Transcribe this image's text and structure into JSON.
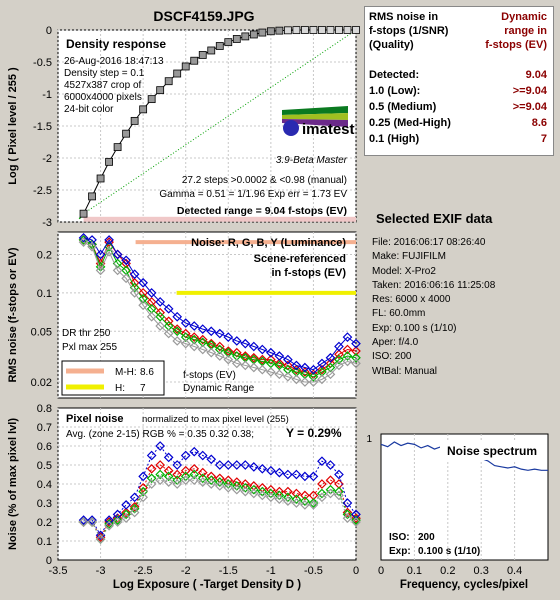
{
  "title": "DSCF4159.JPG",
  "colors": {
    "red": "#e00000",
    "green": "#00b000",
    "blue": "#0000d0",
    "gray": "#9a9a9a",
    "darkred": "#8b0000",
    "title": "#7a1090"
  },
  "density_panel": {
    "heading": "Density response",
    "info": [
      "26-Aug-2016 18:47:13",
      "Density step = 0.1",
      "4527x387 crop of",
      "6000x4000 pixels",
      "24-bit color"
    ],
    "ylabel": "Log ( Pixel level / 255 )",
    "yticks": [
      "0",
      "-0.5",
      "-1",
      "-1.5",
      "-2",
      "-2.5",
      "-3"
    ],
    "logo_text": "imatest",
    "version": "3.9-Beta  Master",
    "steps_text": "27.2 steps >0.0002 & <0.98 (manual)",
    "gamma_text": "Gamma = 0.51 = 1/1.96  Exp err = 1.73 EV",
    "range_text": "Detected range = 9.04 f-stops (EV)"
  },
  "noise_panel": {
    "heading": "Noise: R, G, B, Y (Luminance)",
    "scene_text_1": "Scene-referenced",
    "scene_text_2": "in f-stops (EV)",
    "dr_thr": "DR thr 250",
    "pxl_max": "Pxl max 255",
    "ylabel": "RMS noise (f-stops or EV)",
    "yticks": [
      "0.2",
      "0.1",
      "0.05",
      "0.02"
    ],
    "legend_mh_label": "M-H:",
    "legend_mh_value": "8.6",
    "legend_h_label": "H:",
    "legend_h_value": "7",
    "footer_1": "f-stops (EV)",
    "footer_2": "Dynamic Range"
  },
  "pixel_panel": {
    "heading": "Pixel noise",
    "subheading": "normalized to max pixel level (255)",
    "avg_text": "Avg. (zone 2-15) RGB % = 0.35  0.32  0.38;",
    "y_text": "Y = 0.29%",
    "ylabel": "Noise (% of max pixel lvl)",
    "yticks": [
      "0.8",
      "0.7",
      "0.6",
      "0.5",
      "0.4",
      "0.3",
      "0.2",
      "0.1",
      "0"
    ],
    "xticks": [
      "-3.5",
      "-3",
      "-2.5",
      "-2",
      "-1.5",
      "-1",
      "-0.5",
      "0"
    ],
    "xlabel": "Log Exposure ( -Target Density D )"
  },
  "results_table": {
    "header_left_1": "RMS noise in",
    "header_left_2": "f-stops (1/SNR)",
    "header_left_3": "(Quality)",
    "header_right_1": "Dynamic",
    "header_right_2": "range in",
    "header_right_3": "f-stops (EV)",
    "rows": [
      {
        "label": "Detected:",
        "value": "9.04"
      },
      {
        "label": "1.0  (Low):",
        "value": ">=9.04"
      },
      {
        "label": "0.5  (Medium)",
        "value": ">=9.04"
      },
      {
        "label": "0.25 (Med-High)",
        "value": "8.6"
      },
      {
        "label": "0.1  (High)",
        "value": "7"
      }
    ]
  },
  "exif": {
    "title": "Selected EXIF data",
    "lines": [
      "File:  2016:06:17 08:26:40",
      "Make:  FUJIFILM",
      "Model: X-Pro2",
      "Taken: 2016:06:16 11:25:08",
      "Res:   6000 x 4000",
      "FL:   60.0mm",
      "Exp:   0.100 s  (1/10)",
      "Aper:  f/4.0",
      "ISO:   200",
      "WtBal: Manual"
    ]
  },
  "spectrum": {
    "title": "Noise spectrum",
    "ytick": "1",
    "iso_label": "ISO:",
    "iso_value": "200",
    "exp_label": "Exp:",
    "exp_value": "0.100 s  (1/10)",
    "xlabel": "Frequency, cycles/pixel",
    "xticks": [
      "0",
      "0.1",
      "0.2",
      "0.3",
      "0.4"
    ]
  },
  "chart_data": [
    {
      "type": "scatter",
      "title": "Density response",
      "xlim": [
        -3.5,
        0
      ],
      "ylim": [
        -3,
        0
      ],
      "series": [
        {
          "name": "Density response",
          "x": [
            -3.2,
            -3.1,
            -3.0,
            -2.9,
            -2.8,
            -2.7,
            -2.6,
            -2.5,
            -2.4,
            -2.3,
            -2.2,
            -2.1,
            -2.0,
            -1.9,
            -1.8,
            -1.7,
            -1.6,
            -1.5,
            -1.4,
            -1.3,
            -1.2,
            -1.1,
            -1.0,
            -0.9,
            -0.8,
            -0.7,
            -0.6,
            -0.5,
            -0.4,
            -0.3,
            -0.2,
            -0.1,
            0.0
          ],
          "y": [
            -2.87,
            -2.6,
            -2.32,
            -2.06,
            -1.83,
            -1.62,
            -1.42,
            -1.24,
            -1.08,
            -0.94,
            -0.8,
            -0.68,
            -0.57,
            -0.48,
            -0.39,
            -0.32,
            -0.25,
            -0.19,
            -0.14,
            -0.1,
            -0.07,
            -0.04,
            -0.02,
            -0.01,
            -0.005,
            -0.002,
            0,
            0,
            0,
            0,
            0,
            0,
            0
          ]
        }
      ]
    },
    {
      "type": "line",
      "title": "Noise: R, G, B, Y (Luminance)",
      "ylabel": "RMS noise (f-stops or EV)",
      "xlim": [
        -3.5,
        0
      ],
      "ylim_log": [
        0.015,
        0.3
      ],
      "x": [
        -3.2,
        -3.1,
        -3.0,
        -2.9,
        -2.8,
        -2.7,
        -2.6,
        -2.5,
        -2.4,
        -2.3,
        -2.2,
        -2.1,
        -2.0,
        -1.9,
        -1.8,
        -1.7,
        -1.6,
        -1.5,
        -1.4,
        -1.3,
        -1.2,
        -1.1,
        -1.0,
        -0.9,
        -0.8,
        -0.7,
        -0.6,
        -0.5,
        -0.4,
        -0.3,
        -0.2,
        -0.1,
        0.0
      ],
      "series": [
        {
          "name": "R",
          "values": [
            0.26,
            0.24,
            0.17,
            0.25,
            0.2,
            0.17,
            0.12,
            0.1,
            0.085,
            0.07,
            0.06,
            0.052,
            0.048,
            0.045,
            0.043,
            0.04,
            0.038,
            0.035,
            0.034,
            0.032,
            0.031,
            0.03,
            0.03,
            0.028,
            0.027,
            0.025,
            0.024,
            0.023,
            0.025,
            0.028,
            0.033,
            0.036,
            0.035
          ]
        },
        {
          "name": "G",
          "values": [
            0.26,
            0.24,
            0.16,
            0.23,
            0.17,
            0.15,
            0.11,
            0.09,
            0.075,
            0.065,
            0.055,
            0.05,
            0.045,
            0.043,
            0.041,
            0.039,
            0.036,
            0.034,
            0.032,
            0.031,
            0.03,
            0.029,
            0.028,
            0.027,
            0.025,
            0.024,
            0.023,
            0.022,
            0.024,
            0.026,
            0.03,
            0.032,
            0.031
          ]
        },
        {
          "name": "B",
          "values": [
            0.27,
            0.26,
            0.2,
            0.26,
            0.2,
            0.18,
            0.14,
            0.12,
            0.1,
            0.085,
            0.075,
            0.065,
            0.058,
            0.055,
            0.052,
            0.05,
            0.048,
            0.045,
            0.042,
            0.04,
            0.038,
            0.036,
            0.034,
            0.032,
            0.03,
            0.027,
            0.026,
            0.025,
            0.028,
            0.031,
            0.038,
            0.045,
            0.04
          ]
        },
        {
          "name": "Y",
          "values": [
            0.25,
            0.23,
            0.15,
            0.21,
            0.15,
            0.13,
            0.1,
            0.08,
            0.065,
            0.055,
            0.048,
            0.042,
            0.04,
            0.038,
            0.036,
            0.034,
            0.032,
            0.03,
            0.028,
            0.027,
            0.026,
            0.025,
            0.024,
            0.023,
            0.022,
            0.021,
            0.02,
            0.02,
            0.021,
            0.023,
            0.027,
            0.029,
            0.028
          ]
        }
      ],
      "dynamic_range_bars": [
        {
          "name": "M-H",
          "value": 8.6
        },
        {
          "name": "H",
          "value": 7
        }
      ]
    },
    {
      "type": "line",
      "title": "Pixel noise",
      "ylabel": "Noise (% of max pixel lvl)",
      "xlabel": "Log Exposure ( -Target Density D )",
      "xlim": [
        -3.5,
        0
      ],
      "ylim": [
        0,
        0.8
      ],
      "x": [
        -3.2,
        -3.1,
        -3.0,
        -2.9,
        -2.8,
        -2.7,
        -2.6,
        -2.5,
        -2.4,
        -2.3,
        -2.2,
        -2.1,
        -2.0,
        -1.9,
        -1.8,
        -1.7,
        -1.6,
        -1.5,
        -1.4,
        -1.3,
        -1.2,
        -1.1,
        -1.0,
        -0.9,
        -0.8,
        -0.7,
        -0.6,
        -0.5,
        -0.4,
        -0.3,
        -0.2,
        -0.1,
        0.0
      ],
      "series": [
        {
          "name": "R",
          "values": [
            0.2,
            0.2,
            0.12,
            0.2,
            0.22,
            0.25,
            0.28,
            0.38,
            0.48,
            0.5,
            0.47,
            0.45,
            0.47,
            0.48,
            0.46,
            0.44,
            0.43,
            0.42,
            0.41,
            0.4,
            0.39,
            0.38,
            0.37,
            0.36,
            0.36,
            0.35,
            0.34,
            0.34,
            0.4,
            0.42,
            0.4,
            0.25,
            0.22
          ]
        },
        {
          "name": "G",
          "values": [
            0.2,
            0.2,
            0.11,
            0.19,
            0.21,
            0.24,
            0.27,
            0.36,
            0.43,
            0.45,
            0.44,
            0.42,
            0.44,
            0.45,
            0.43,
            0.42,
            0.41,
            0.4,
            0.39,
            0.38,
            0.37,
            0.36,
            0.35,
            0.34,
            0.33,
            0.32,
            0.31,
            0.3,
            0.35,
            0.37,
            0.36,
            0.24,
            0.21
          ]
        },
        {
          "name": "B",
          "values": [
            0.21,
            0.21,
            0.13,
            0.21,
            0.24,
            0.29,
            0.33,
            0.44,
            0.55,
            0.6,
            0.54,
            0.5,
            0.55,
            0.57,
            0.55,
            0.53,
            0.5,
            0.5,
            0.5,
            0.5,
            0.49,
            0.48,
            0.47,
            0.46,
            0.45,
            0.45,
            0.44,
            0.44,
            0.52,
            0.5,
            0.45,
            0.3,
            0.24
          ]
        },
        {
          "name": "Y",
          "values": [
            0.2,
            0.2,
            0.11,
            0.18,
            0.2,
            0.22,
            0.25,
            0.33,
            0.4,
            0.42,
            0.41,
            0.4,
            0.42,
            0.42,
            0.41,
            0.4,
            0.39,
            0.38,
            0.37,
            0.36,
            0.35,
            0.34,
            0.33,
            0.32,
            0.31,
            0.3,
            0.29,
            0.29,
            0.33,
            0.35,
            0.34,
            0.22,
            0.2
          ]
        }
      ]
    },
    {
      "type": "line",
      "title": "Noise spectrum",
      "xlabel": "Frequency, cycles/pixel",
      "xlim": [
        0,
        0.5
      ],
      "ylim": [
        0,
        1
      ],
      "series": [
        {
          "name": "spectrum",
          "x": [
            0.0,
            0.02,
            0.04,
            0.06,
            0.08,
            0.1,
            0.12,
            0.14,
            0.16,
            0.18,
            0.2,
            0.22,
            0.24,
            0.26,
            0.28,
            0.3,
            0.32,
            0.34,
            0.36,
            0.38,
            0.4,
            0.42,
            0.44,
            0.46,
            0.48,
            0.5
          ],
          "y": [
            0.98,
            0.96,
            1.0,
            0.97,
            0.99,
            0.98,
            0.95,
            0.97,
            0.94,
            0.96,
            0.95,
            0.97,
            0.93,
            0.92,
            0.9,
            0.86,
            0.84,
            0.8,
            0.79,
            0.78,
            0.79,
            0.77,
            0.76,
            0.77,
            0.76,
            0.76
          ]
        }
      ]
    }
  ]
}
